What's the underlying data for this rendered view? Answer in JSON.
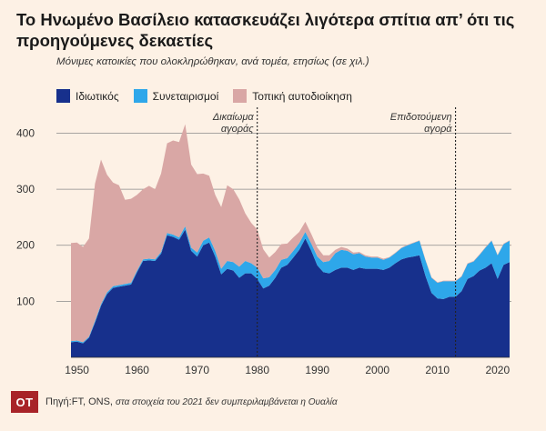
{
  "header": {
    "title": "Το Ηνωμένο Βασίλειο κατασκευάζει λιγότερα σπίτια απ’ ότι τις προηγούμενες δεκαετίες",
    "subtitle": "Μόνιμες κατοικίες που ολοκληρώθηκαν, ανά τομέα, ετησίως (σε χιλ.)"
  },
  "footer": {
    "logo": "ΟΤ",
    "source": "Πηγή:FT, ONS,",
    "note": "στα στοιχεία  του 2021 δεν συμπεριλαμβάνεται η Ουαλία"
  },
  "colors": {
    "background": "#fdf1e5",
    "private": "#17308c",
    "housing_associations": "#2ea7ea",
    "local_authorities": "#d9a7a5"
  },
  "chart_data": {
    "type": "area",
    "stacked": true,
    "title": "Το Ηνωμένο Βασίλειο κατασκευάζει λιγότερα σπίτια απ’ ότι τις προηγούμενες δεκαετίες",
    "subtitle": "Μόνιμες κατοικίες που ολοκληρώθηκαν, ανά τομέα, ετησίως (σε χιλ.)",
    "xlabel": "",
    "ylabel": "",
    "xlim": [
      1949,
      2022
    ],
    "ylim": [
      0,
      430
    ],
    "xticks": [
      1950,
      1960,
      1970,
      1980,
      1990,
      2000,
      2010,
      2020
    ],
    "yticks": [
      100,
      200,
      300,
      400
    ],
    "grid": "horizontal",
    "legend_position": "top-left",
    "x": [
      1949,
      1950,
      1951,
      1952,
      1953,
      1954,
      1955,
      1956,
      1957,
      1958,
      1959,
      1960,
      1961,
      1962,
      1963,
      1964,
      1965,
      1966,
      1967,
      1968,
      1969,
      1970,
      1971,
      1972,
      1973,
      1974,
      1975,
      1976,
      1977,
      1978,
      1979,
      1980,
      1981,
      1982,
      1983,
      1984,
      1985,
      1986,
      1987,
      1988,
      1989,
      1990,
      1991,
      1992,
      1993,
      1994,
      1995,
      1996,
      1997,
      1998,
      1999,
      2000,
      2001,
      2002,
      2003,
      2004,
      2005,
      2006,
      2007,
      2008,
      2009,
      2010,
      2011,
      2012,
      2013,
      2014,
      2015,
      2016,
      2017,
      2018,
      2019,
      2020,
      2021,
      2022
    ],
    "series": [
      {
        "name": "Ιδιωτικός",
        "color": "#17308c",
        "values": [
          27,
          28,
          25,
          35,
          62,
          92,
          113,
          124,
          126,
          128,
          130,
          152,
          172,
          173,
          172,
          185,
          218,
          215,
          210,
          228,
          190,
          180,
          200,
          205,
          180,
          148,
          158,
          155,
          142,
          150,
          150,
          140,
          123,
          128,
          142,
          160,
          165,
          178,
          192,
          212,
          190,
          164,
          152,
          150,
          156,
          160,
          160,
          156,
          160,
          158,
          158,
          158,
          156,
          160,
          168,
          175,
          178,
          180,
          182,
          145,
          115,
          105,
          104,
          108,
          108,
          118,
          140,
          145,
          155,
          160,
          168,
          140,
          165,
          170
        ]
      },
      {
        "name": "Συνεταιρισμοί",
        "color": "#2ea7ea",
        "values": [
          2,
          2,
          2,
          2,
          3,
          3,
          3,
          3,
          3,
          3,
          3,
          3,
          3,
          3,
          3,
          3,
          4,
          4,
          4,
          6,
          6,
          7,
          8,
          9,
          10,
          10,
          14,
          15,
          20,
          22,
          18,
          20,
          18,
          15,
          14,
          14,
          12,
          12,
          12,
          12,
          13,
          16,
          18,
          22,
          30,
          32,
          30,
          28,
          26,
          22,
          20,
          20,
          18,
          18,
          18,
          20,
          22,
          24,
          26,
          28,
          27,
          28,
          32,
          28,
          28,
          26,
          27,
          26,
          28,
          36,
          40,
          42,
          37,
          38
        ]
      },
      {
        "name": "Τοπική αυτοδιοίκηση",
        "color": "#d9a7a5",
        "values": [
          175,
          175,
          170,
          175,
          245,
          258,
          210,
          185,
          178,
          150,
          150,
          135,
          125,
          130,
          125,
          140,
          160,
          168,
          170,
          182,
          148,
          140,
          120,
          110,
          100,
          110,
          135,
          130,
          120,
          85,
          72,
          68,
          52,
          35,
          32,
          28,
          26,
          24,
          20,
          18,
          17,
          16,
          12,
          10,
          6,
          5,
          4,
          3,
          2,
          2,
          2,
          2,
          2,
          1,
          1,
          1,
          1,
          1,
          1,
          1,
          1,
          1,
          1,
          1,
          1,
          1,
          1,
          1,
          1,
          1,
          1,
          1,
          1,
          1
        ]
      }
    ],
    "annotations": [
      {
        "x": 1980,
        "label_lines": [
          "Δικαίωμα",
          "αγοράς"
        ]
      },
      {
        "x": 2013,
        "label_lines": [
          "Επιδοτούμενη",
          "αγορά"
        ]
      }
    ]
  }
}
